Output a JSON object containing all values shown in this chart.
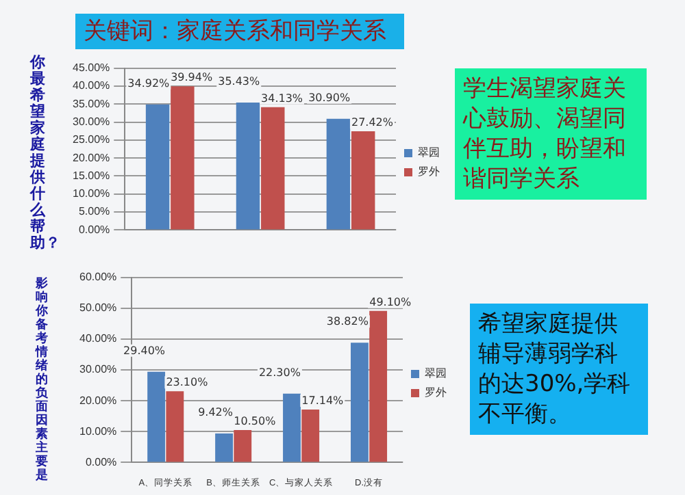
{
  "chart_data": [
    {
      "type": "bar",
      "title": "关键词：家庭关系和同学关系",
      "ylabel": "你最希望家庭提供什么帮助？",
      "categories": [
        null,
        null,
        null
      ],
      "series": [
        {
          "name": "翠园",
          "color": "#4f81bd",
          "values": [
            34.92,
            35.43,
            30.9
          ],
          "value_labels": [
            "34.92%",
            "35.43%",
            "30.90%"
          ]
        },
        {
          "name": "罗外",
          "color": "#c0504d",
          "values": [
            39.94,
            34.13,
            27.42
          ],
          "value_labels": [
            "39.94%",
            "34.13%",
            "27.42%"
          ]
        }
      ],
      "ylim": [
        0,
        45
      ],
      "yticks": [
        {
          "value": 0,
          "label": "0.00%"
        },
        {
          "value": 5,
          "label": "5.00%"
        },
        {
          "value": 10,
          "label": "10.00%"
        },
        {
          "value": 15,
          "label": "15.00%"
        },
        {
          "value": 20,
          "label": "20.00%"
        },
        {
          "value": 25,
          "label": "25.00%"
        },
        {
          "value": 30,
          "label": "30.00%"
        },
        {
          "value": 35,
          "label": "35.00%"
        },
        {
          "value": 40,
          "label": "40.00%"
        },
        {
          "value": 45,
          "label": "45.00%"
        }
      ],
      "grid": "y",
      "legend": "right",
      "annotations": [
        "学生渴望家庭关心鼓励、渴望同伴互助，盼望和谐同学关系"
      ]
    },
    {
      "type": "bar",
      "ylabel": "影响你备考情绪的负面因素主要是",
      "categories": [
        "A、同学关系",
        "B、师生关系",
        "C、与家人关系",
        "D.没有"
      ],
      "series": [
        {
          "name": "翠园",
          "color": "#4f81bd",
          "values": [
            29.4,
            9.42,
            22.3,
            38.82
          ],
          "value_labels": [
            "29.40%",
            "9.42%",
            "22.30%",
            "38.82%"
          ]
        },
        {
          "name": "罗外",
          "color": "#c0504d",
          "values": [
            23.1,
            10.5,
            17.14,
            49.1
          ],
          "value_labels": [
            "23.10%",
            "10.50%",
            "17.14%",
            "49.10%"
          ]
        }
      ],
      "ylim": [
        0,
        60
      ],
      "yticks": [
        {
          "value": 0,
          "label": "0.00%"
        },
        {
          "value": 10,
          "label": "10.00%"
        },
        {
          "value": 20,
          "label": "20.00%"
        },
        {
          "value": 30,
          "label": "30.00%"
        },
        {
          "value": 40,
          "label": "40.00%"
        },
        {
          "value": 50,
          "label": "50.00%"
        },
        {
          "value": 60,
          "label": "60.00%"
        }
      ],
      "grid": "y",
      "legend": "right",
      "annotations": [
        "希望家庭提供辅导薄弱学科的达30%,学科不平衡。"
      ]
    }
  ]
}
